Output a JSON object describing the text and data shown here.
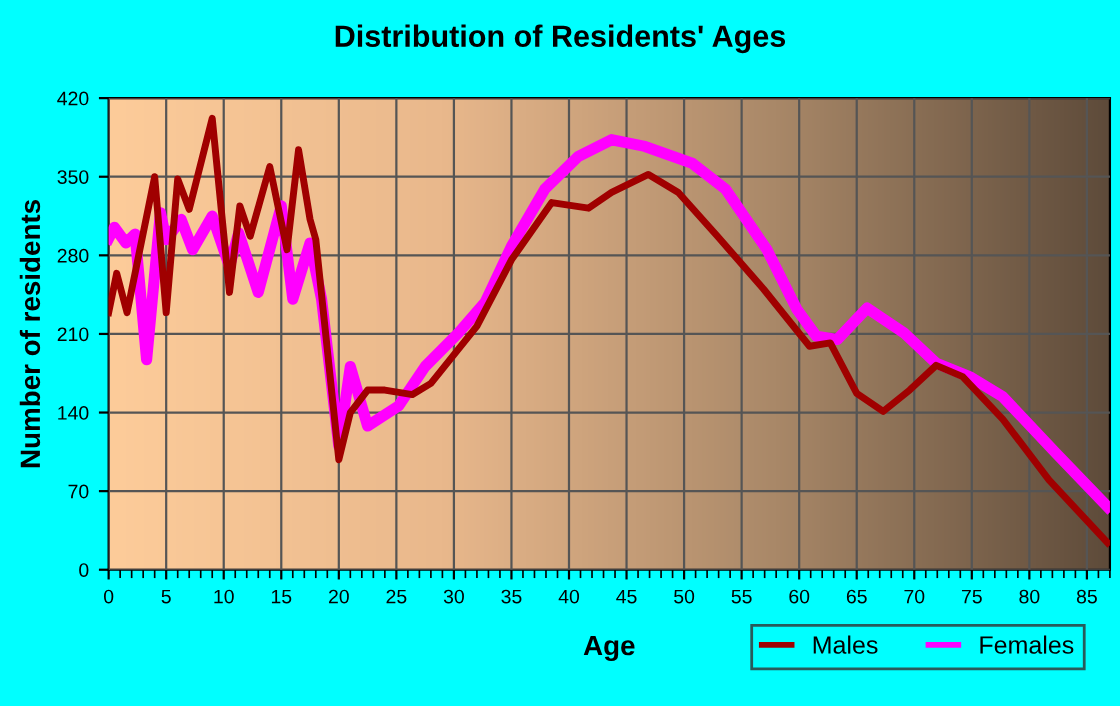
{
  "chart_data": {
    "type": "line",
    "title": "Distribution of Residents' Ages",
    "xlabel": "Age",
    "ylabel": "Number of residents",
    "xlim": [
      0,
      87
    ],
    "xticks": [
      0,
      5,
      10,
      15,
      20,
      25,
      30,
      35,
      40,
      45,
      50,
      55,
      60,
      65,
      70,
      75,
      80,
      85
    ],
    "ylim": [
      0,
      420
    ],
    "yticks": [
      0,
      70,
      140,
      210,
      280,
      350,
      420
    ],
    "grid": true,
    "legend": "bottom right",
    "marker": "none",
    "line_style": "solid",
    "series": [
      {
        "name": "Males",
        "color": "#a00000",
        "x": [
          0,
          0.7,
          1.6,
          4,
          5,
          6,
          7,
          9,
          10.5,
          11.4,
          12.3,
          14,
          15.5,
          16.5,
          17.5,
          18,
          20,
          21,
          22.5,
          24,
          26.4,
          28,
          32,
          35,
          38.5,
          41.7,
          43.7,
          46.9,
          49.5,
          52.9,
          56.9,
          60.9,
          62.7,
          65,
          67.3,
          69.6,
          71.9,
          74.2,
          77.7,
          81.7,
          86.8
        ],
        "values": [
          229,
          264,
          229,
          350,
          229,
          348,
          321,
          402,
          247,
          324,
          297,
          359,
          285,
          374,
          312,
          294,
          98,
          140,
          160,
          160,
          156,
          166,
          217,
          276,
          327,
          322,
          336,
          352,
          336,
          297,
          250,
          199,
          202,
          157,
          141,
          160,
          182,
          172,
          134,
          80,
          24
        ]
      },
      {
        "name": "Females",
        "color": "#ff00ff",
        "x": [
          0,
          0.5,
          1.5,
          2.3,
          3.3,
          4.5,
          5,
          6.3,
          7.3,
          9,
          10.5,
          11.3,
          13,
          15,
          16,
          17.5,
          18.5,
          20,
          21,
          22.5,
          25.2,
          27.5,
          30.4,
          32.7,
          35,
          37.9,
          40.8,
          43.7,
          46.6,
          50.7,
          53.6,
          57.2,
          59.8,
          61.5,
          63.3,
          65.9,
          69.1,
          71.9,
          74.8,
          77.7,
          82.3,
          86.8
        ],
        "values": [
          295,
          305,
          291,
          299,
          187,
          318,
          294,
          312,
          285,
          315,
          270,
          300,
          247,
          324,
          241,
          291,
          241,
          110,
          181,
          128,
          146,
          181,
          211,
          238,
          288,
          339,
          368,
          383,
          377,
          362,
          339,
          285,
          232,
          208,
          205,
          233,
          211,
          184,
          172,
          154,
          104,
          56
        ]
      }
    ]
  }
}
